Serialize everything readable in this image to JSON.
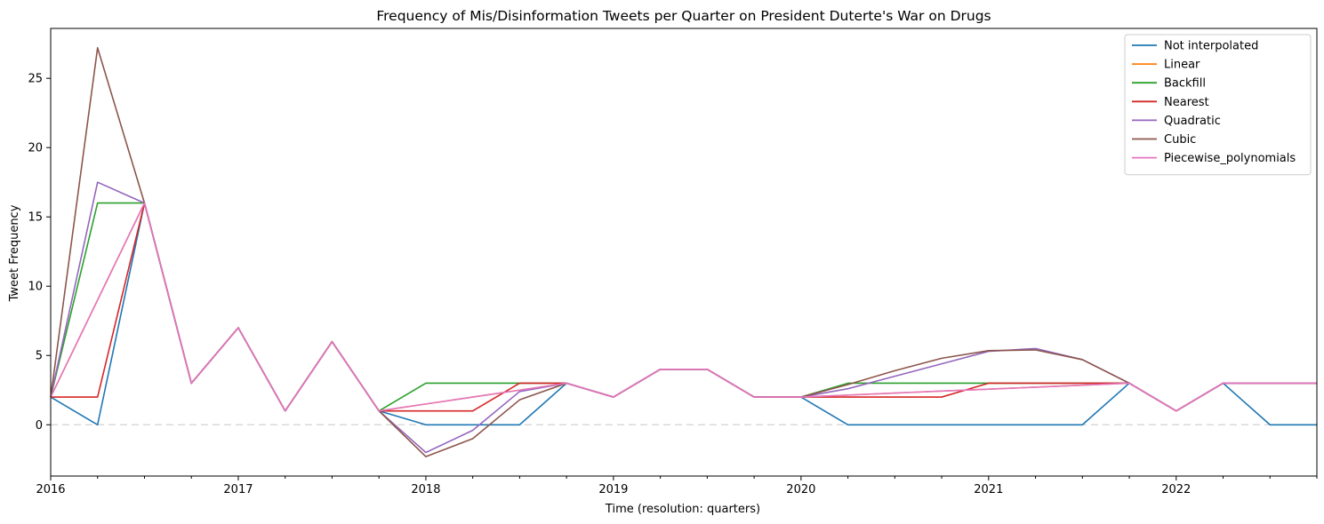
{
  "chart_data": {
    "type": "line",
    "title": "Frequency of Mis/Disinformation Tweets per Quarter on President Duterte's War on Drugs",
    "xlabel": "Time (resolution: quarters)",
    "ylabel": "Tweet Frequency",
    "x": [
      "2016Q1",
      "2016Q2",
      "2016Q3",
      "2016Q4",
      "2017Q1",
      "2017Q2",
      "2017Q3",
      "2017Q4",
      "2018Q1",
      "2018Q2",
      "2018Q3",
      "2018Q4",
      "2019Q1",
      "2019Q2",
      "2019Q3",
      "2019Q4",
      "2020Q1",
      "2020Q2",
      "2020Q3",
      "2020Q4",
      "2021Q1",
      "2021Q2",
      "2021Q3",
      "2021Q4",
      "2022Q1",
      "2022Q2",
      "2022Q3",
      "2022Q4"
    ],
    "x_tick_labels": [
      "2016",
      "2017",
      "2018",
      "2019",
      "2020",
      "2021",
      "2022"
    ],
    "yticks": [
      0,
      5,
      10,
      15,
      20,
      25
    ],
    "ylim": [
      -3.7,
      28.6
    ],
    "grid": false,
    "legend_position": "top-right",
    "reference_line": {
      "y": 0,
      "style": "dashed",
      "color": "#d9d9d9"
    },
    "series": [
      {
        "name": "Not interpolated",
        "color": "#1f77b4",
        "values": [
          2,
          0,
          16,
          3,
          7,
          1,
          6,
          1,
          0,
          0,
          0,
          3,
          2,
          4,
          4,
          2,
          2,
          0,
          0,
          0,
          0,
          0,
          0,
          3,
          1,
          3,
          0,
          0
        ]
      },
      {
        "name": "Linear",
        "color": "#ff7f0e",
        "values": [
          2,
          9,
          16,
          3,
          7,
          1,
          6,
          1,
          1.5,
          2,
          2.5,
          3,
          2,
          4,
          4,
          2,
          2,
          2.14,
          2.29,
          2.43,
          2.57,
          2.71,
          2.86,
          3,
          1,
          3,
          3,
          3
        ]
      },
      {
        "name": "Backfill",
        "color": "#2ca02c",
        "values": [
          2,
          16,
          16,
          3,
          7,
          1,
          6,
          1,
          3,
          3,
          3,
          3,
          2,
          4,
          4,
          2,
          2,
          3,
          3,
          3,
          3,
          3,
          3,
          3,
          1,
          3,
          3,
          3
        ]
      },
      {
        "name": "Nearest",
        "color": "#d62728",
        "values": [
          2,
          2,
          16,
          3,
          7,
          1,
          6,
          1,
          1,
          1,
          3,
          3,
          2,
          4,
          4,
          2,
          2,
          2,
          2,
          2,
          3,
          3,
          3,
          3,
          1,
          3,
          3,
          3
        ]
      },
      {
        "name": "Quadratic",
        "color": "#9467bd",
        "values": [
          2,
          17.5,
          16,
          3,
          7,
          1,
          6,
          1,
          -2,
          -0.4,
          2.4,
          3,
          2,
          4,
          4,
          2,
          2,
          2.6,
          3.5,
          4.4,
          5.3,
          5.5,
          4.7,
          3,
          1,
          3,
          3,
          3
        ]
      },
      {
        "name": "Cubic",
        "color": "#8c564b",
        "values": [
          2,
          27.2,
          16,
          3,
          7,
          1,
          6,
          1,
          -2.3,
          -1,
          1.8,
          3,
          2,
          4,
          4,
          2,
          2,
          2.9,
          3.9,
          4.8,
          5.35,
          5.4,
          4.7,
          3,
          1,
          3,
          3,
          3
        ]
      },
      {
        "name": "Piecewise_polynomials",
        "color": "#e377c2",
        "values": [
          2,
          9,
          16,
          3,
          7,
          1,
          6,
          1,
          1.5,
          2,
          2.5,
          3,
          2,
          4,
          4,
          2,
          2,
          2.14,
          2.29,
          2.43,
          2.57,
          2.71,
          2.86,
          3,
          1,
          3,
          3,
          3
        ]
      }
    ]
  }
}
